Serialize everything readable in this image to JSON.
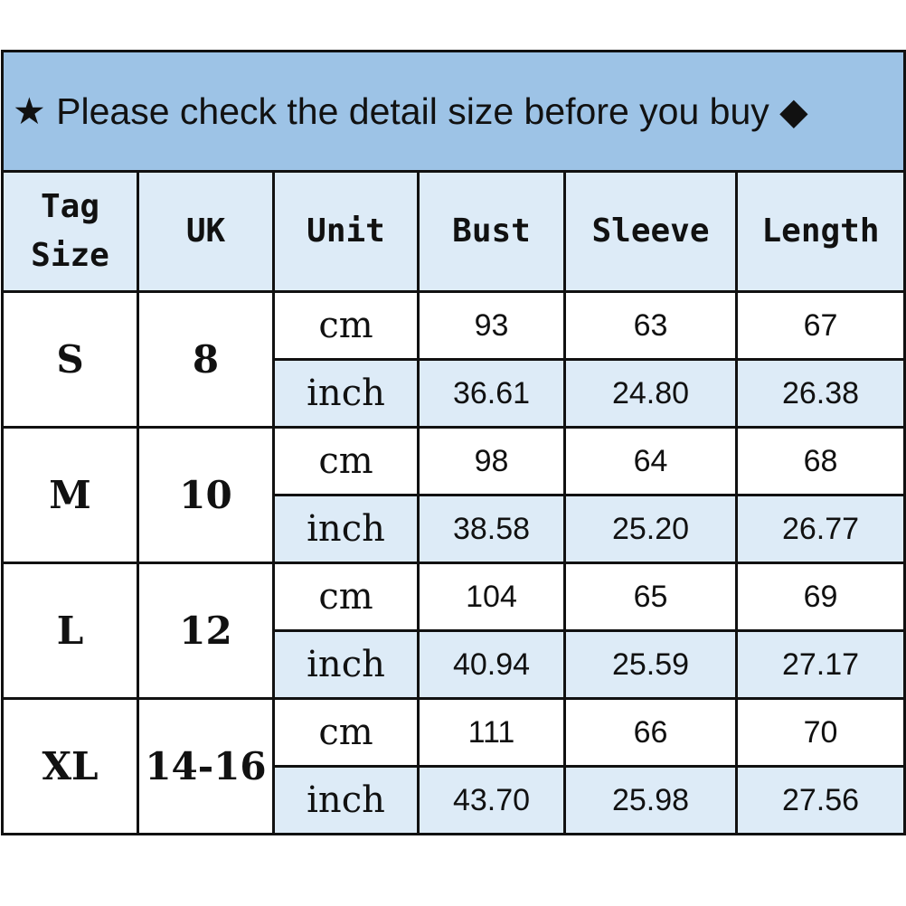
{
  "title": {
    "star": "★",
    "text": "Please check the detail size before you buy",
    "diamond": "◆"
  },
  "headers": [
    "Tag\nSize",
    "UK",
    "Unit",
    "Bust",
    "Sleeve",
    "Length"
  ],
  "rows": [
    {
      "tag": "S",
      "uk": "8",
      "cm": {
        "unit": "cm",
        "bust": "93",
        "sleeve": "63",
        "length": "67"
      },
      "inch": {
        "unit": "inch",
        "bust": "36.61",
        "sleeve": "24.80",
        "length": "26.38"
      }
    },
    {
      "tag": "M",
      "uk": "10",
      "cm": {
        "unit": "cm",
        "bust": "98",
        "sleeve": "64",
        "length": "68"
      },
      "inch": {
        "unit": "inch",
        "bust": "38.58",
        "sleeve": "25.20",
        "length": "26.77"
      }
    },
    {
      "tag": "L",
      "uk": "12",
      "cm": {
        "unit": "cm",
        "bust": "104",
        "sleeve": "65",
        "length": "69"
      },
      "inch": {
        "unit": "inch",
        "bust": "40.94",
        "sleeve": "25.59",
        "length": "27.17"
      }
    },
    {
      "tag": "XL",
      "uk": "14-16",
      "cm": {
        "unit": "cm",
        "bust": "111",
        "sleeve": "66",
        "length": "70"
      },
      "inch": {
        "unit": "inch",
        "bust": "43.70",
        "sleeve": "25.98",
        "length": "27.56"
      }
    }
  ]
}
